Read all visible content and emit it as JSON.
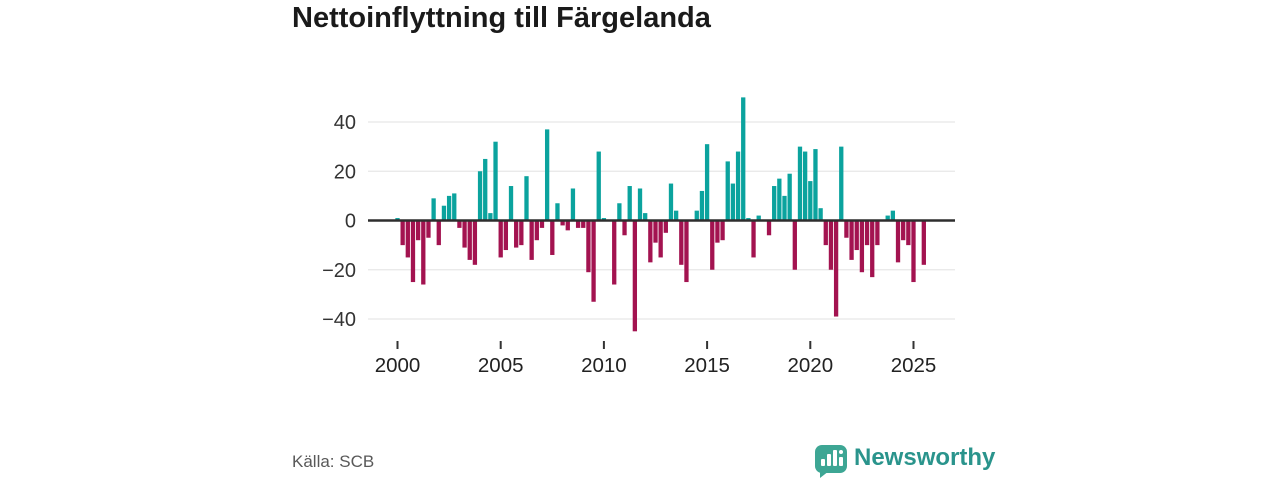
{
  "title": "Nettoinflyttning till Färgelanda",
  "source": "Källa: SCB",
  "branding": {
    "wordmark": "Newsworthy",
    "badge_color": "#3da694",
    "wordmark_color": "#2a948c",
    "icon": "bar-chart-speech-bubble"
  },
  "chart_data": {
    "type": "bar",
    "title": "Nettoinflyttning till Färgelanda",
    "frequency": "quarterly",
    "start_year": 2000,
    "start_quarter": 1,
    "series": [
      {
        "name": "Nettoinflyttning",
        "values": [
          1,
          -10,
          -15,
          -25,
          -8,
          -26,
          -7,
          9,
          -10,
          6,
          10,
          11,
          -3,
          -11,
          -16,
          -18,
          20,
          25,
          3,
          32,
          -15,
          -12,
          14,
          -11,
          -10,
          18,
          -16,
          -8,
          -3,
          37,
          -14,
          7,
          -2,
          -4,
          13,
          -3,
          -3,
          -21,
          -33,
          28,
          1,
          0,
          -26,
          7,
          -6,
          14,
          -45,
          13,
          3,
          -17,
          -9,
          -15,
          -5,
          15,
          4,
          -18,
          -25,
          0,
          4,
          12,
          31,
          -20,
          -9,
          -8,
          24,
          15,
          28,
          50,
          1,
          -15,
          2,
          0,
          -6,
          14,
          17,
          10,
          19,
          -20,
          30,
          28,
          16,
          29,
          5,
          -10,
          -20,
          -39,
          30,
          -7,
          -16,
          -12,
          -21,
          -10,
          -23,
          -10,
          0,
          2,
          4,
          -17,
          -8,
          -10,
          -25,
          0,
          -18
        ]
      }
    ],
    "xlabel": "",
    "ylabel": "",
    "x_tick_labels": [
      "2000",
      "2005",
      "2010",
      "2015",
      "2020",
      "2025"
    ],
    "x_tick_years": [
      2000,
      2005,
      2010,
      2015,
      2020,
      2025
    ],
    "y_tick_labels": [
      "40",
      "20",
      "0",
      "−20",
      "−40"
    ],
    "y_ticks": [
      40,
      20,
      0,
      -20,
      -40
    ],
    "ylim": [
      -48,
      55
    ],
    "grid": true,
    "legend": "none",
    "colors": {
      "positive": "#0ba39e",
      "negative": "#a31350",
      "zero_line": "#2e2e2e",
      "gridline": "#e7e7e7",
      "tick_text": "#222222"
    }
  }
}
